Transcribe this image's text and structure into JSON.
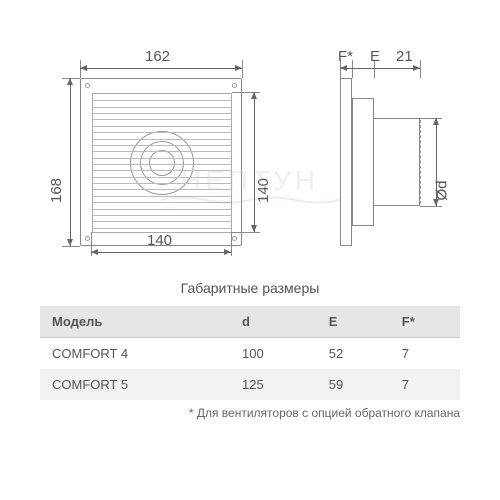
{
  "diagram": {
    "front": {
      "outer_w": "162",
      "outer_h": "168",
      "inner_w": "140",
      "inner_h": "140"
    },
    "side": {
      "f_label": "F*",
      "e_label": "E",
      "fixed_len": "21",
      "diameter_label": "Ød"
    },
    "grille_rows": 22,
    "colors": {
      "line": "#888888",
      "text": "#555555",
      "bg": "#ffffff"
    }
  },
  "table": {
    "title": "Габаритные размеры",
    "headers": [
      "Модель",
      "d",
      "E",
      "F*"
    ],
    "rows": [
      [
        "COMFORT 4",
        "100",
        "52",
        "7"
      ],
      [
        "COMFORT 5",
        "125",
        "59",
        "7"
      ]
    ],
    "footnote": "* Для вентиляторов с опцией обратного клапана"
  },
  "watermark": "НЕПТУН"
}
